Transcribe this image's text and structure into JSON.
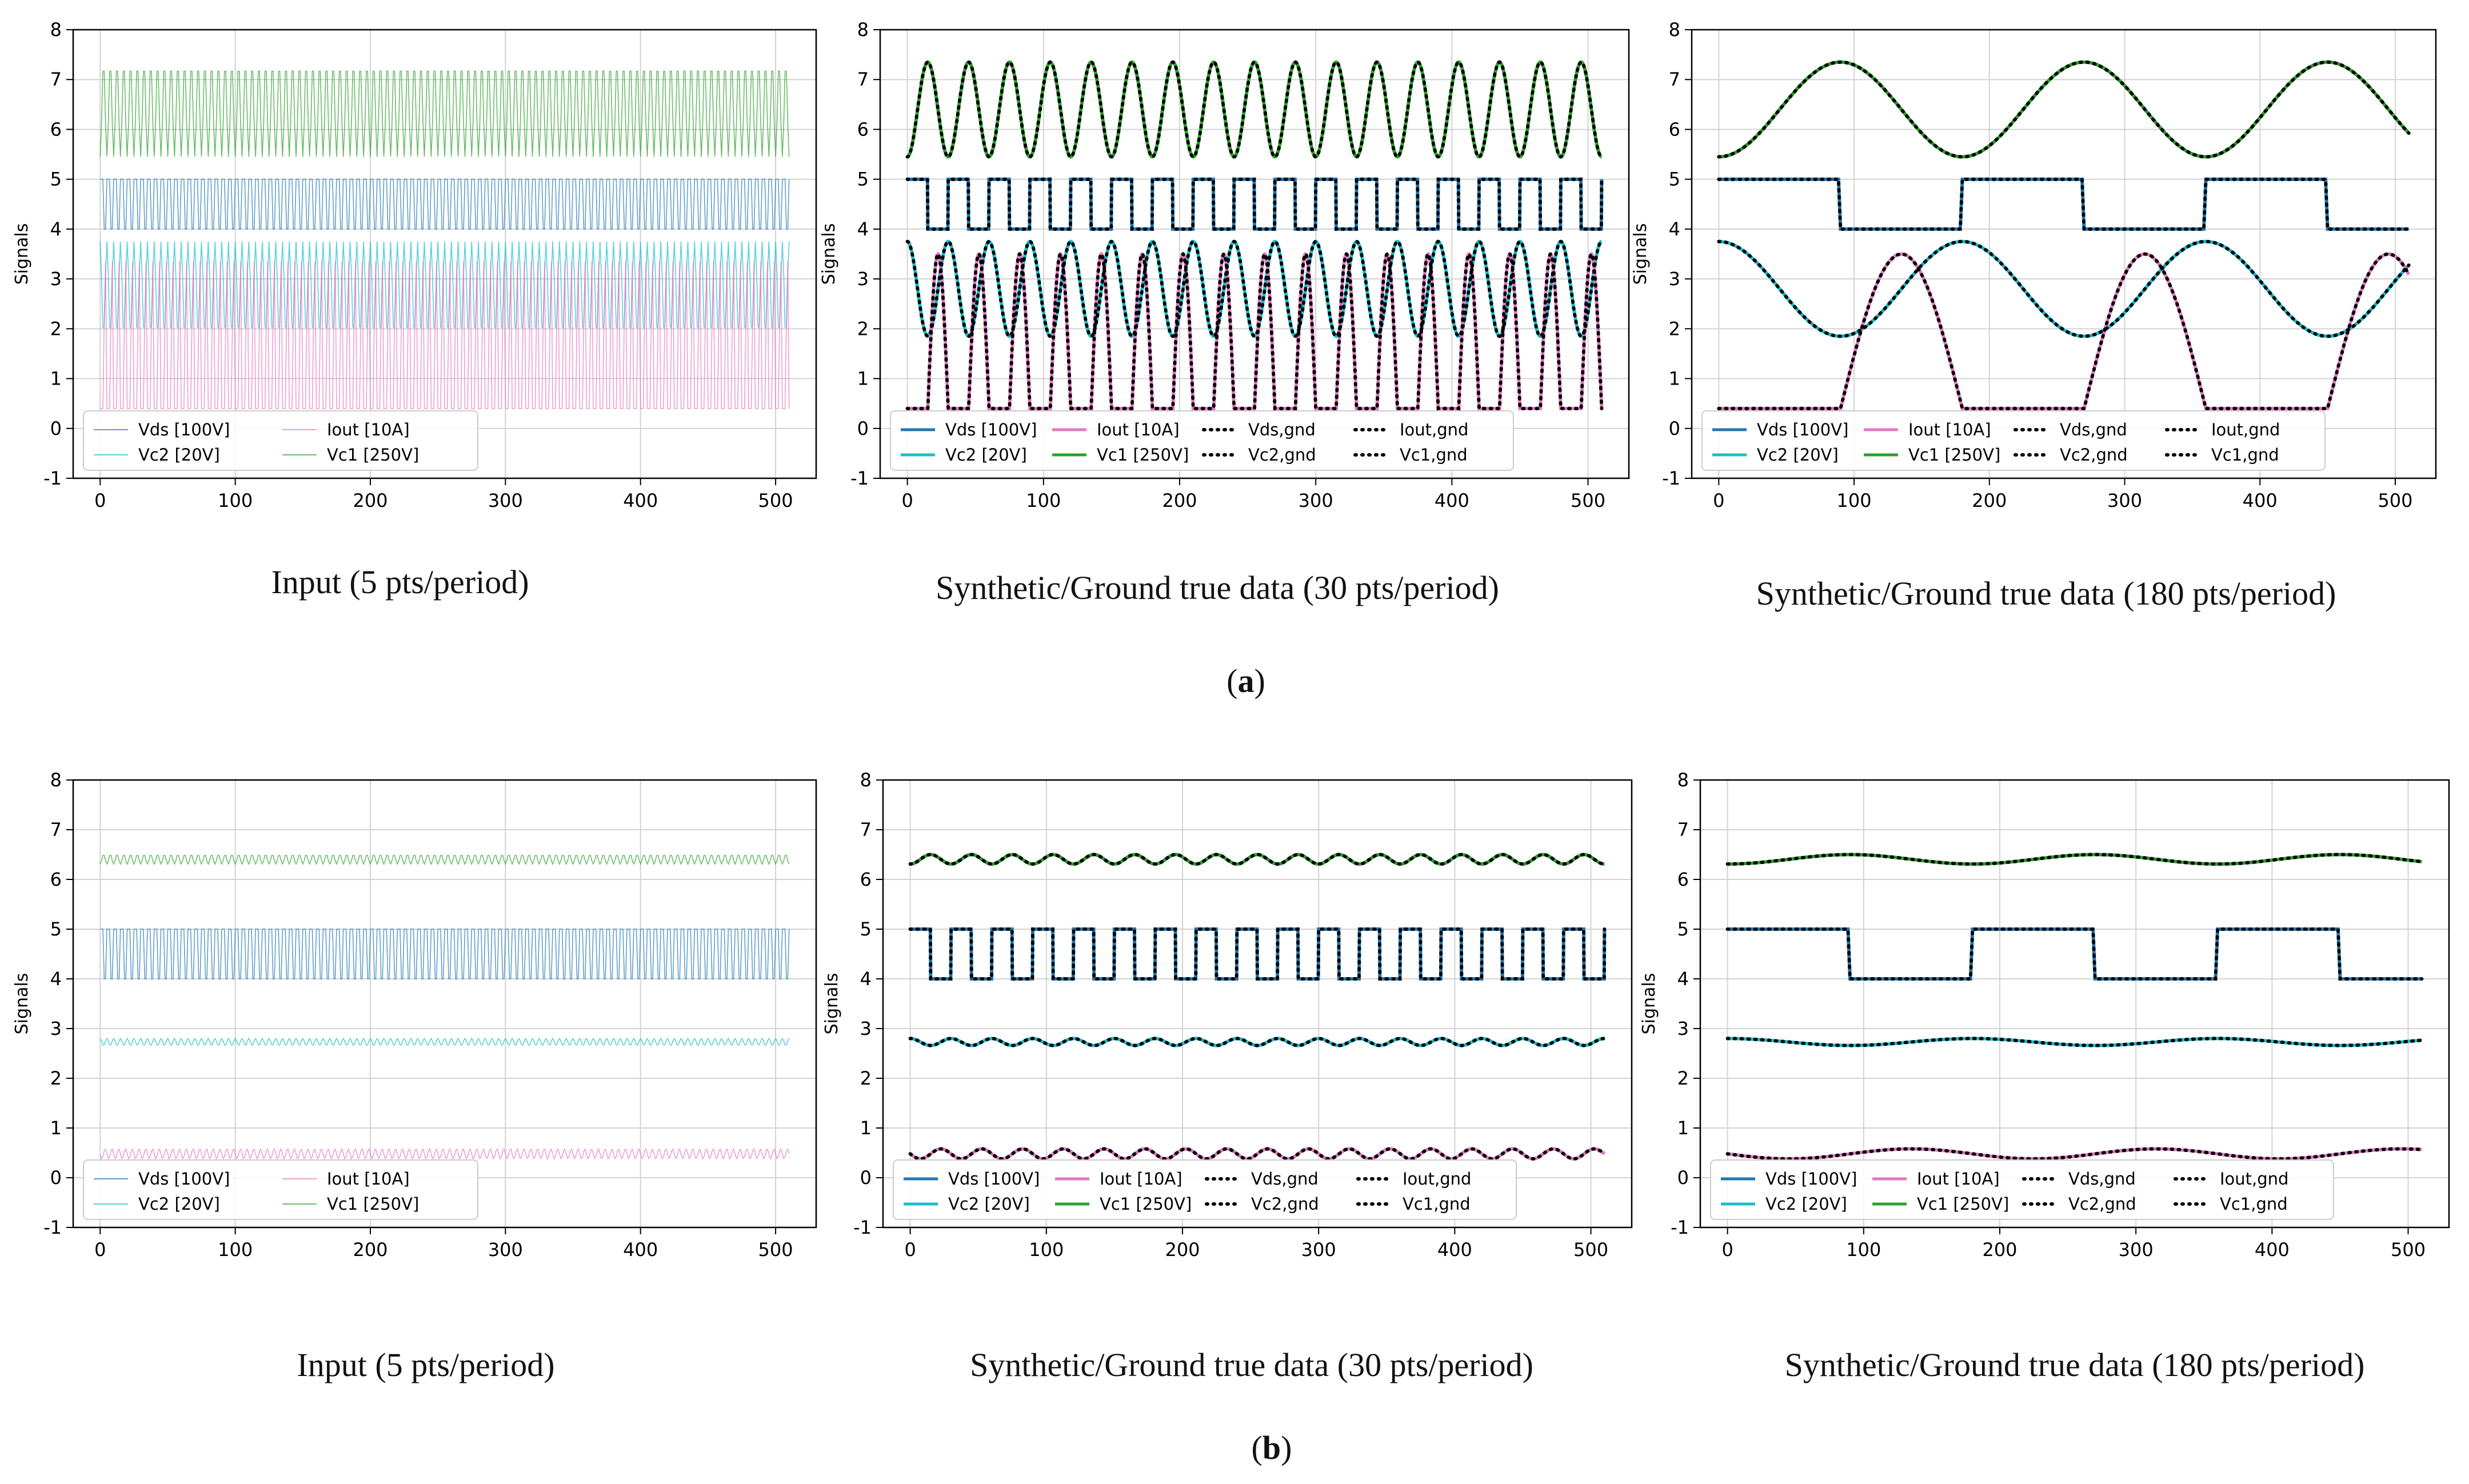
{
  "figure": {
    "panel_labels": [
      "a",
      "b"
    ]
  },
  "legend": {
    "input_entries": [
      "Vds [100V]",
      "Iout [10A]",
      "Vc2 [20V]",
      "Vc1 [250V]"
    ],
    "synthetic_entries": [
      "Vds [100V]",
      "Iout [10A]",
      "Vds,gnd",
      "Iout,gnd",
      "Vc2 [20V]",
      "Vc1 [250V]",
      "Vc2,gnd",
      "Vc1,gnd"
    ]
  },
  "colors": {
    "Vds": "#1f77b4",
    "Vc2": "#17becf",
    "Iout": "#e377c2",
    "Vc1": "#2ca02c",
    "gnd": "#000000",
    "grid": "#d3d3d3"
  },
  "chart_data": [
    {
      "type": "line",
      "row": "a",
      "column": 1,
      "caption": "Input (5 pts/period)",
      "ylabel": "Signals",
      "xlim": [
        -20,
        530
      ],
      "ylim": [
        -1,
        8
      ],
      "xticks": [
        0,
        100,
        200,
        300,
        400,
        500
      ],
      "yticks": [
        -1,
        0,
        1,
        2,
        3,
        4,
        5,
        6,
        7,
        8
      ],
      "grid": true,
      "legend_position": "lower-left",
      "legend_entries": [
        "Vds [100V]",
        "Iout [10A]",
        "Vc2 [20V]",
        "Vc1 [250V]"
      ],
      "series": [
        {
          "name": "Vds [100V]",
          "kind": "input",
          "shape": "square",
          "low": 4.0,
          "high": 5.0,
          "period_pts": 5,
          "phase": 0
        },
        {
          "name": "Vc2 [20V]",
          "kind": "input",
          "shape": "sine",
          "low": 1.85,
          "high": 3.75,
          "period_pts": 5,
          "phase": 0.25
        },
        {
          "name": "Iout [10A]",
          "kind": "input",
          "shape": "pulse",
          "low": 0.4,
          "high": 3.5,
          "period_pts": 5,
          "phase": 0.5
        },
        {
          "name": "Vc1 [250V]",
          "kind": "input",
          "shape": "sine",
          "low": 5.45,
          "high": 7.35,
          "period_pts": 5,
          "phase": 0.75
        }
      ]
    },
    {
      "type": "line",
      "row": "a",
      "column": 2,
      "caption": "Synthetic/Ground true data (30 pts/period)",
      "ylabel": "Signals",
      "xlim": [
        -20,
        530
      ],
      "ylim": [
        -1,
        8
      ],
      "xticks": [
        0,
        100,
        200,
        300,
        400,
        500
      ],
      "yticks": [
        -1,
        0,
        1,
        2,
        3,
        4,
        5,
        6,
        7,
        8
      ],
      "grid": true,
      "legend_position": "lower-left",
      "legend_entries": [
        "Vds [100V]",
        "Iout [10A]",
        "Vds,gnd",
        "Iout,gnd",
        "Vc2 [20V]",
        "Vc1 [250V]",
        "Vc2,gnd",
        "Vc1,gnd"
      ],
      "series": [
        {
          "name": "Vds [100V]",
          "kind": "solid",
          "shape": "square",
          "low": 4.0,
          "high": 5.0,
          "period_pts": 30,
          "phase": 0
        },
        {
          "name": "Vc2 [20V]",
          "kind": "solid",
          "shape": "sine",
          "low": 1.85,
          "high": 3.75,
          "period_pts": 30,
          "phase": 0.25
        },
        {
          "name": "Iout [10A]",
          "kind": "solid",
          "shape": "pulse",
          "low": 0.4,
          "high": 3.5,
          "period_pts": 30,
          "phase": 0.5
        },
        {
          "name": "Vc1 [250V]",
          "kind": "solid",
          "shape": "sine",
          "low": 5.45,
          "high": 7.35,
          "period_pts": 30,
          "phase": 0.75
        },
        {
          "name": "Vds,gnd",
          "kind": "dotted",
          "shape": "square",
          "low": 4.0,
          "high": 5.0,
          "period_pts": 30,
          "phase": 0
        },
        {
          "name": "Vc2,gnd",
          "kind": "dotted",
          "shape": "sine",
          "low": 1.85,
          "high": 3.75,
          "period_pts": 30,
          "phase": 0.25
        },
        {
          "name": "Iout,gnd",
          "kind": "dotted",
          "shape": "pulse",
          "low": 0.4,
          "high": 3.5,
          "period_pts": 30,
          "phase": 0.5
        },
        {
          "name": "Vc1,gnd",
          "kind": "dotted",
          "shape": "sine",
          "low": 5.45,
          "high": 7.35,
          "period_pts": 30,
          "phase": 0.75
        }
      ]
    },
    {
      "type": "line",
      "row": "a",
      "column": 3,
      "caption": "Synthetic/Ground true data (180 pts/period)",
      "ylabel": "Signals",
      "xlim": [
        -20,
        530
      ],
      "ylim": [
        -1,
        8
      ],
      "xticks": [
        0,
        100,
        200,
        300,
        400,
        500
      ],
      "yticks": [
        -1,
        0,
        1,
        2,
        3,
        4,
        5,
        6,
        7,
        8
      ],
      "grid": true,
      "legend_position": "lower-left",
      "legend_entries": [
        "Vds [100V]",
        "Iout [10A]",
        "Vds,gnd",
        "Iout,gnd",
        "Vc2 [20V]",
        "Vc1 [250V]",
        "Vc2,gnd",
        "Vc1,gnd"
      ],
      "series": [
        {
          "name": "Vds [100V]",
          "kind": "solid",
          "shape": "square",
          "low": 4.0,
          "high": 5.0,
          "period_pts": 180,
          "phase": 0
        },
        {
          "name": "Vc2 [20V]",
          "kind": "solid",
          "shape": "sine",
          "low": 1.85,
          "high": 3.75,
          "period_pts": 180,
          "phase": 0.25
        },
        {
          "name": "Iout [10A]",
          "kind": "solid",
          "shape": "pulse",
          "low": 0.4,
          "high": 3.5,
          "period_pts": 180,
          "phase": 0.5
        },
        {
          "name": "Vc1 [250V]",
          "kind": "solid",
          "shape": "sine",
          "low": 5.45,
          "high": 7.35,
          "period_pts": 180,
          "phase": 0.75
        },
        {
          "name": "Vds,gnd",
          "kind": "dotted",
          "shape": "square",
          "low": 4.0,
          "high": 5.0,
          "period_pts": 180,
          "phase": 0
        },
        {
          "name": "Vc2,gnd",
          "kind": "dotted",
          "shape": "sine",
          "low": 1.85,
          "high": 3.75,
          "period_pts": 180,
          "phase": 0.25
        },
        {
          "name": "Iout,gnd",
          "kind": "dotted",
          "shape": "pulse",
          "low": 0.4,
          "high": 3.5,
          "period_pts": 180,
          "phase": 0.5
        },
        {
          "name": "Vc1,gnd",
          "kind": "dotted",
          "shape": "sine",
          "low": 5.45,
          "high": 7.35,
          "period_pts": 180,
          "phase": 0.75
        }
      ]
    },
    {
      "type": "line",
      "row": "b",
      "column": 1,
      "caption": "Input (5 pts/period)",
      "ylabel": "Signals",
      "xlim": [
        -20,
        530
      ],
      "ylim": [
        -1,
        8
      ],
      "xticks": [
        0,
        100,
        200,
        300,
        400,
        500
      ],
      "yticks": [
        -1,
        0,
        1,
        2,
        3,
        4,
        5,
        6,
        7,
        8
      ],
      "grid": true,
      "legend_position": "lower-left",
      "legend_entries": [
        "Vds [100V]",
        "Iout [10A]",
        "Vc2 [20V]",
        "Vc1 [250V]"
      ],
      "series": [
        {
          "name": "Vds [100V]",
          "kind": "input",
          "shape": "square",
          "low": 4.0,
          "high": 5.0,
          "period_pts": 5,
          "phase": 0
        },
        {
          "name": "Vc2 [20V]",
          "kind": "input",
          "shape": "sine",
          "low": 2.66,
          "high": 2.8,
          "period_pts": 5,
          "phase": 0.25
        },
        {
          "name": "Iout [10A]",
          "kind": "input",
          "shape": "sine",
          "low": 0.38,
          "high": 0.58,
          "period_pts": 5,
          "phase": 0.5
        },
        {
          "name": "Vc1 [250V]",
          "kind": "input",
          "shape": "sine",
          "low": 6.31,
          "high": 6.5,
          "period_pts": 5,
          "phase": 0.75
        }
      ]
    },
    {
      "type": "line",
      "row": "b",
      "column": 2,
      "caption": "Synthetic/Ground true data (30 pts/period)",
      "ylabel": "Signals",
      "xlim": [
        -20,
        530
      ],
      "ylim": [
        -1,
        8
      ],
      "xticks": [
        0,
        100,
        200,
        300,
        400,
        500
      ],
      "yticks": [
        -1,
        0,
        1,
        2,
        3,
        4,
        5,
        6,
        7,
        8
      ],
      "grid": true,
      "legend_position": "lower-left",
      "legend_entries": [
        "Vds [100V]",
        "Iout [10A]",
        "Vds,gnd",
        "Iout,gnd",
        "Vc2 [20V]",
        "Vc1 [250V]",
        "Vc2,gnd",
        "Vc1,gnd"
      ],
      "series": [
        {
          "name": "Vds [100V]",
          "kind": "solid",
          "shape": "square",
          "low": 4.0,
          "high": 5.0,
          "period_pts": 30,
          "phase": 0
        },
        {
          "name": "Vc2 [20V]",
          "kind": "solid",
          "shape": "sine",
          "low": 2.66,
          "high": 2.8,
          "period_pts": 30,
          "phase": 0.25
        },
        {
          "name": "Iout [10A]",
          "kind": "solid",
          "shape": "sine",
          "low": 0.38,
          "high": 0.58,
          "period_pts": 30,
          "phase": 0.5
        },
        {
          "name": "Vc1 [250V]",
          "kind": "solid",
          "shape": "sine",
          "low": 6.31,
          "high": 6.5,
          "period_pts": 30,
          "phase": 0.75
        },
        {
          "name": "Vds,gnd",
          "kind": "dotted",
          "shape": "square",
          "low": 4.0,
          "high": 5.0,
          "period_pts": 30,
          "phase": 0
        },
        {
          "name": "Vc2,gnd",
          "kind": "dotted",
          "shape": "sine",
          "low": 2.66,
          "high": 2.8,
          "period_pts": 30,
          "phase": 0.25
        },
        {
          "name": "Iout,gnd",
          "kind": "dotted",
          "shape": "sine",
          "low": 0.38,
          "high": 0.58,
          "period_pts": 30,
          "phase": 0.5
        },
        {
          "name": "Vc1,gnd",
          "kind": "dotted",
          "shape": "sine",
          "low": 6.31,
          "high": 6.5,
          "period_pts": 30,
          "phase": 0.75
        }
      ]
    },
    {
      "type": "line",
      "row": "b",
      "column": 3,
      "caption": "Synthetic/Ground true data (180 pts/period)",
      "ylabel": "Signals",
      "xlim": [
        -20,
        530
      ],
      "ylim": [
        -1,
        8
      ],
      "xticks": [
        0,
        100,
        200,
        300,
        400,
        500
      ],
      "yticks": [
        -1,
        0,
        1,
        2,
        3,
        4,
        5,
        6,
        7,
        8
      ],
      "grid": true,
      "legend_position": "lower-left",
      "legend_entries": [
        "Vds [100V]",
        "Iout [10A]",
        "Vds,gnd",
        "Iout,gnd",
        "Vc2 [20V]",
        "Vc1 [250V]",
        "Vc2,gnd",
        "Vc1,gnd"
      ],
      "series": [
        {
          "name": "Vds [100V]",
          "kind": "solid",
          "shape": "square",
          "low": 4.0,
          "high": 5.0,
          "period_pts": 180,
          "phase": 0
        },
        {
          "name": "Vc2 [20V]",
          "kind": "solid",
          "shape": "sine",
          "low": 2.66,
          "high": 2.8,
          "period_pts": 180,
          "phase": 0.25
        },
        {
          "name": "Iout [10A]",
          "kind": "solid",
          "shape": "sine",
          "low": 0.38,
          "high": 0.58,
          "period_pts": 180,
          "phase": 0.5
        },
        {
          "name": "Vc1 [250V]",
          "kind": "solid",
          "shape": "sine",
          "low": 6.31,
          "high": 6.5,
          "period_pts": 180,
          "phase": 0.75
        },
        {
          "name": "Vds,gnd",
          "kind": "dotted",
          "shape": "square",
          "low": 4.0,
          "high": 5.0,
          "period_pts": 180,
          "phase": 0
        },
        {
          "name": "Vc2,gnd",
          "kind": "dotted",
          "shape": "sine",
          "low": 2.66,
          "high": 2.8,
          "period_pts": 180,
          "phase": 0.25
        },
        {
          "name": "Iout,gnd",
          "kind": "dotted",
          "shape": "sine",
          "low": 0.38,
          "high": 0.58,
          "period_pts": 180,
          "phase": 0.5
        },
        {
          "name": "Vc1,gnd",
          "kind": "dotted",
          "shape": "sine",
          "low": 6.31,
          "high": 6.5,
          "period_pts": 180,
          "phase": 0.75
        }
      ]
    }
  ]
}
